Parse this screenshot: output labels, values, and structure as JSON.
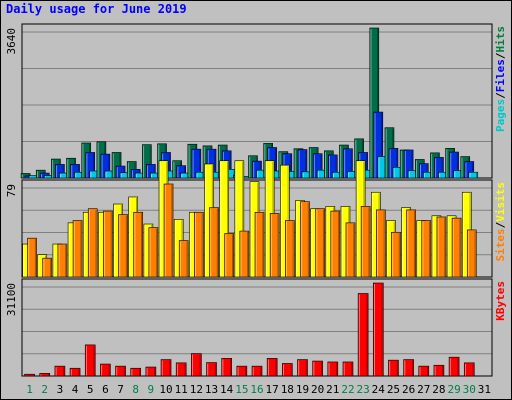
{
  "chart_data": {
    "type": "bar",
    "title": "Daily usage for June 2019",
    "categories": [
      "1",
      "2",
      "3",
      "4",
      "5",
      "6",
      "7",
      "8",
      "9",
      "10",
      "11",
      "12",
      "13",
      "14",
      "15",
      "16",
      "17",
      "18",
      "19",
      "20",
      "21",
      "22",
      "23",
      "24",
      "25",
      "26",
      "27",
      "28",
      "29",
      "30",
      "31"
    ],
    "weekend_days": [
      "1",
      "2",
      "8",
      "9",
      "15",
      "16",
      "22",
      "23",
      "29",
      "30"
    ],
    "panels": [
      {
        "name": "hits-files-pages",
        "ymax_label": "3640",
        "ymax": 3640,
        "right_labels": [
          {
            "text": "Pages",
            "color": "#00c8c8"
          },
          {
            "text": "Files",
            "color": "#0000ff"
          },
          {
            "text": "Hits",
            "color": "#008040"
          }
        ],
        "series": [
          {
            "name": "Hits",
            "color": "#006e4a",
            "values": [
              110,
              190,
              460,
              480,
              850,
              880,
              620,
              400,
              810,
              830,
              420,
              820,
              780,
              800,
              70,
              540,
              840,
              640,
              710,
              740,
              660,
              800,
              950,
              3640,
              1220,
              680,
              450,
              610,
              720,
              520,
              0
            ]
          },
          {
            "name": "Files",
            "color": "#0030e0",
            "values": [
              50,
              120,
              330,
              330,
              620,
              580,
              290,
              210,
              330,
              620,
              300,
              700,
              700,
              660,
              40,
              410,
              740,
              590,
              690,
              590,
              560,
              710,
              620,
              1600,
              720,
              680,
              350,
              500,
              630,
              400,
              0
            ]
          },
          {
            "name": "Pages",
            "color": "#00c8e8",
            "values": [
              60,
              60,
              120,
              140,
              170,
              170,
              130,
              120,
              120,
              170,
              120,
              140,
              140,
              210,
              40,
              190,
              170,
              160,
              150,
              190,
              140,
              160,
              190,
              520,
              260,
              180,
              140,
              140,
              180,
              140,
              0
            ]
          }
        ]
      },
      {
        "name": "visits-sites",
        "ymax_label": "79",
        "ymax": 79,
        "right_labels": [
          {
            "text": "Sites",
            "color": "#ff8000"
          },
          {
            "text": "Visits",
            "color": "#ffff00"
          }
        ],
        "series": [
          {
            "name": "Visits",
            "color": "#ffff00",
            "values": [
              28,
              19,
              28,
              46,
              55,
              55,
              62,
              68,
              45,
              99,
              49,
              55,
              96,
              113,
              114,
              81,
              115,
              95,
              65,
              58,
              60,
              60,
              102,
              72,
              48,
              59,
              48,
              52,
              52,
              72,
              0
            ]
          },
          {
            "name": "Sites",
            "color": "#ff8000",
            "values": [
              33,
              16,
              28,
              48,
              58,
              56,
              53,
              55,
              42,
              79,
              31,
              55,
              59,
              37,
              39,
              55,
              54,
              48,
              64,
              58,
              56,
              46,
              60,
              57,
              38,
              57,
              48,
              51,
              50,
              40,
              0
            ]
          }
        ]
      },
      {
        "name": "kbytes",
        "ymax_label": "31100",
        "ymax": 31100,
        "right_labels": [
          {
            "text": "KBytes",
            "color": "#ff0000"
          }
        ],
        "series": [
          {
            "name": "KBytes",
            "color": "#ff0000",
            "values": [
              600,
              900,
              3300,
              2600,
              10400,
              4000,
              3300,
              2600,
              3000,
              5500,
              4400,
              7500,
              4500,
              5900,
              3300,
              3300,
              5900,
              4200,
              5500,
              5000,
              4700,
              4700,
              27600,
              31100,
              5300,
              5500,
              3300,
              3600,
              6300,
              4400,
              0
            ]
          }
        ]
      }
    ]
  }
}
